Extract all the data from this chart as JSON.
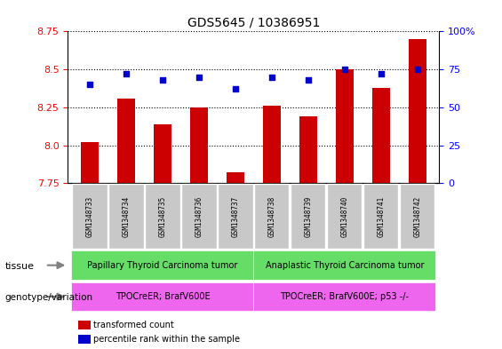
{
  "title": "GDS5645 / 10386951",
  "samples": [
    "GSM1348733",
    "GSM1348734",
    "GSM1348735",
    "GSM1348736",
    "GSM1348737",
    "GSM1348738",
    "GSM1348739",
    "GSM1348740",
    "GSM1348741",
    "GSM1348742"
  ],
  "transformed_count": [
    8.02,
    8.31,
    8.14,
    8.25,
    7.82,
    8.26,
    8.19,
    8.5,
    8.38,
    8.7
  ],
  "percentile_rank": [
    65,
    72,
    68,
    70,
    62,
    70,
    68,
    75,
    72,
    75
  ],
  "ylim_left": [
    7.75,
    8.75
  ],
  "ylim_right": [
    0,
    100
  ],
  "yticks_left": [
    7.75,
    8.0,
    8.25,
    8.5,
    8.75
  ],
  "yticks_right": [
    0,
    25,
    50,
    75,
    100
  ],
  "bar_color": "#cc0000",
  "dot_color": "#0000cc",
  "bar_width": 0.5,
  "tissue_group1": "Papillary Thyroid Carcinoma tumor",
  "tissue_group2": "Anaplastic Thyroid Carcinoma tumor",
  "genotype_group1": "TPOCreER; BrafV600E",
  "genotype_group2": "TPOCreER; BrafV600E; p53 -/-",
  "tissue_color1": "#66dd66",
  "tissue_color2": "#66dd66",
  "genotype_color": "#ee66ee",
  "split_index": 5,
  "legend_bar_label": "transformed count",
  "legend_dot_label": "percentile rank within the sample",
  "tick_bg_color": "#c8c8c8",
  "label_tissue": "tissue",
  "label_genotype": "genotype/variation"
}
